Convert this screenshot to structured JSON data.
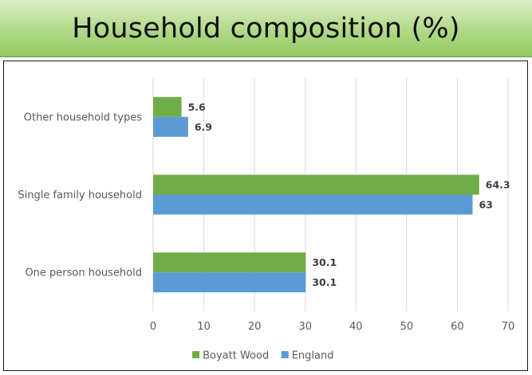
{
  "header": {
    "title": "Household composition (%)"
  },
  "colors": {
    "series_1": "#70ad47",
    "series_2": "#5b9bd5",
    "grid": "#d9d9d9",
    "text": "#595959"
  },
  "chart_data": {
    "type": "bar",
    "orientation": "horizontal",
    "title": "Household composition (%)",
    "xlabel": "",
    "ylabel": "",
    "categories": [
      "Other household types",
      "Single family household",
      "One person household"
    ],
    "series": [
      {
        "name": "Boyatt Wood",
        "values": [
          5.6,
          64.3,
          30.1
        ],
        "color": "#70ad47"
      },
      {
        "name": "England",
        "values": [
          6.9,
          63,
          30.1
        ],
        "color": "#5b9bd5"
      }
    ],
    "xlim": [
      0,
      70
    ],
    "xticks": [
      0,
      10,
      20,
      30,
      40,
      50,
      60,
      70
    ],
    "grid": true,
    "legend_position": "bottom",
    "data_labels": true
  }
}
